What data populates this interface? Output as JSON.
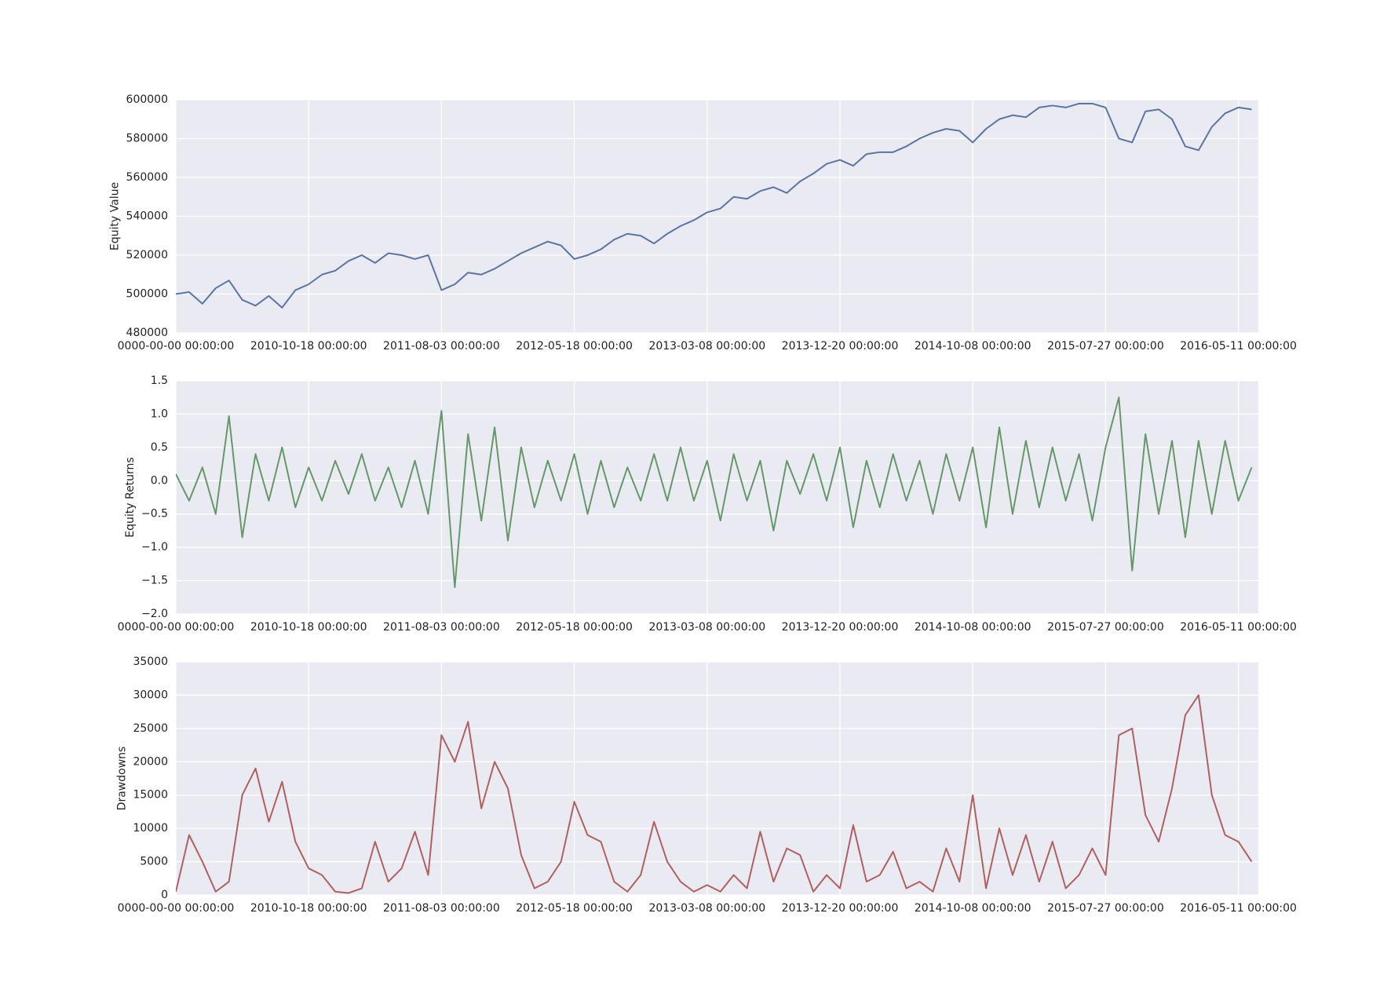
{
  "chart_data": [
    {
      "type": "line",
      "ylabel": "Equity Value",
      "x": [
        0,
        20,
        40,
        60,
        80,
        100,
        120,
        140,
        160,
        180,
        200,
        220,
        240,
        260,
        280,
        300,
        320,
        340,
        360,
        380,
        400,
        420,
        440,
        460,
        480,
        500,
        520,
        540,
        560,
        580,
        600,
        620,
        640,
        660,
        680,
        700,
        720,
        740,
        760,
        780,
        800,
        820,
        840,
        860,
        880,
        900,
        920,
        940,
        960,
        980,
        1000,
        1020,
        1040,
        1060,
        1080,
        1100,
        1120,
        1140,
        1160,
        1180,
        1200,
        1220,
        1240,
        1260,
        1280,
        1300,
        1320,
        1340,
        1360,
        1380,
        1400,
        1420,
        1440,
        1460,
        1480,
        1500,
        1520,
        1540,
        1560,
        1580,
        1600,
        1620
      ],
      "series": [
        {
          "name": "Equity Value",
          "color": "#5a75a3",
          "values": [
            500000,
            501000,
            495000,
            503000,
            507000,
            497000,
            494000,
            499000,
            493000,
            502000,
            505000,
            510000,
            512000,
            517000,
            520000,
            516000,
            521000,
            520000,
            518000,
            520000,
            502000,
            505000,
            511000,
            510000,
            513000,
            517000,
            521000,
            524000,
            527000,
            525000,
            518000,
            520000,
            523000,
            528000,
            531000,
            530000,
            526000,
            531000,
            535000,
            538000,
            542000,
            544000,
            550000,
            549000,
            553000,
            555000,
            552000,
            558000,
            562000,
            567000,
            569000,
            566000,
            572000,
            573000,
            573000,
            576000,
            580000,
            583000,
            585000,
            584000,
            578000,
            585000,
            590000,
            592000,
            591000,
            596000,
            597000,
            596000,
            598000,
            598000,
            596000,
            580000,
            578000,
            594000,
            595000,
            590000,
            576000,
            574000,
            586000,
            593000,
            596000,
            595000
          ]
        }
      ],
      "xlim": [
        0,
        1630
      ],
      "xticks": [
        {
          "value": 0,
          "label": "0000-00-00 00:00:00"
        },
        {
          "value": 200,
          "label": "2010-10-18 00:00:00"
        },
        {
          "value": 400,
          "label": "2011-08-03 00:00:00"
        },
        {
          "value": 600,
          "label": "2012-05-18 00:00:00"
        },
        {
          "value": 800,
          "label": "2013-03-08 00:00:00"
        },
        {
          "value": 1000,
          "label": "2013-12-20 00:00:00"
        },
        {
          "value": 1200,
          "label": "2014-10-08 00:00:00"
        },
        {
          "value": 1400,
          "label": "2015-07-27 00:00:00"
        },
        {
          "value": 1600,
          "label": "2016-05-11 00:00:00"
        }
      ],
      "ylim": [
        480000,
        600000
      ],
      "yticks": [
        480000,
        500000,
        520000,
        540000,
        560000,
        580000,
        600000
      ],
      "grid": true
    },
    {
      "type": "line",
      "ylabel": "Equity Returns",
      "x": [
        0,
        20,
        40,
        60,
        80,
        100,
        120,
        140,
        160,
        180,
        200,
        220,
        240,
        260,
        280,
        300,
        320,
        340,
        360,
        380,
        400,
        420,
        440,
        460,
        480,
        500,
        520,
        540,
        560,
        580,
        600,
        620,
        640,
        660,
        680,
        700,
        720,
        740,
        760,
        780,
        800,
        820,
        840,
        860,
        880,
        900,
        920,
        940,
        960,
        980,
        1000,
        1020,
        1040,
        1060,
        1080,
        1100,
        1120,
        1140,
        1160,
        1180,
        1200,
        1220,
        1240,
        1260,
        1280,
        1300,
        1320,
        1340,
        1360,
        1380,
        1400,
        1420,
        1440,
        1460,
        1480,
        1500,
        1520,
        1540,
        1560,
        1580,
        1600,
        1620
      ],
      "series": [
        {
          "name": "Equity Returns",
          "color": "#659869",
          "values": [
            0.1,
            -0.3,
            0.2,
            -0.5,
            0.97,
            -0.85,
            0.4,
            -0.3,
            0.5,
            -0.4,
            0.2,
            -0.3,
            0.3,
            -0.2,
            0.4,
            -0.3,
            0.2,
            -0.4,
            0.3,
            -0.5,
            1.05,
            -1.6,
            0.7,
            -0.6,
            0.8,
            -0.9,
            0.5,
            -0.4,
            0.3,
            -0.3,
            0.4,
            -0.5,
            0.3,
            -0.4,
            0.2,
            -0.3,
            0.4,
            -0.3,
            0.5,
            -0.3,
            0.3,
            -0.6,
            0.4,
            -0.3,
            0.3,
            -0.75,
            0.3,
            -0.2,
            0.4,
            -0.3,
            0.5,
            -0.7,
            0.3,
            -0.4,
            0.4,
            -0.3,
            0.3,
            -0.5,
            0.4,
            -0.3,
            0.5,
            -0.7,
            0.8,
            -0.5,
            0.6,
            -0.4,
            0.5,
            -0.3,
            0.4,
            -0.6,
            0.5,
            1.25,
            -1.35,
            0.7,
            -0.5,
            0.6,
            -0.85,
            0.6,
            -0.5,
            0.6,
            -0.3,
            0.2
          ]
        }
      ],
      "xlim": [
        0,
        1630
      ],
      "xticks": [
        {
          "value": 0,
          "label": "0000-00-00 00:00:00"
        },
        {
          "value": 200,
          "label": "2010-10-18 00:00:00"
        },
        {
          "value": 400,
          "label": "2011-08-03 00:00:00"
        },
        {
          "value": 600,
          "label": "2012-05-18 00:00:00"
        },
        {
          "value": 800,
          "label": "2013-03-08 00:00:00"
        },
        {
          "value": 1000,
          "label": "2013-12-20 00:00:00"
        },
        {
          "value": 1200,
          "label": "2014-10-08 00:00:00"
        },
        {
          "value": 1400,
          "label": "2015-07-27 00:00:00"
        },
        {
          "value": 1600,
          "label": "2016-05-11 00:00:00"
        }
      ],
      "ylim": [
        -2.0,
        1.5
      ],
      "yticks": [
        {
          "value": -2.0,
          "label": "−2.0"
        },
        {
          "value": -1.5,
          "label": "−1.5"
        },
        {
          "value": -1.0,
          "label": "−1.0"
        },
        {
          "value": -0.5,
          "label": "−0.5"
        },
        {
          "value": 0,
          "label": "0.0"
        },
        0.5,
        {
          "value": 1,
          "label": "1.0"
        },
        1.5
      ],
      "grid": true
    },
    {
      "type": "line",
      "ylabel": "Drawdowns",
      "x": [
        0,
        20,
        40,
        60,
        80,
        100,
        120,
        140,
        160,
        180,
        200,
        220,
        240,
        260,
        280,
        300,
        320,
        340,
        360,
        380,
        400,
        420,
        440,
        460,
        480,
        500,
        520,
        540,
        560,
        580,
        600,
        620,
        640,
        660,
        680,
        700,
        720,
        740,
        760,
        780,
        800,
        820,
        840,
        860,
        880,
        900,
        920,
        940,
        960,
        980,
        1000,
        1020,
        1040,
        1060,
        1080,
        1100,
        1120,
        1140,
        1160,
        1180,
        1200,
        1220,
        1240,
        1260,
        1280,
        1300,
        1320,
        1340,
        1360,
        1380,
        1400,
        1420,
        1440,
        1460,
        1480,
        1500,
        1520,
        1540,
        1560,
        1580,
        1600,
        1620
      ],
      "series": [
        {
          "name": "Drawdowns",
          "color": "#b0605f",
          "values": [
            500,
            9000,
            5000,
            500,
            2000,
            15000,
            19000,
            11000,
            17000,
            8000,
            4000,
            3000,
            500,
            300,
            1000,
            8000,
            2000,
            4000,
            9500,
            3000,
            24000,
            20000,
            26000,
            13000,
            20000,
            16000,
            6000,
            1000,
            2000,
            5000,
            14000,
            9000,
            8000,
            2000,
            500,
            3000,
            11000,
            5000,
            2000,
            500,
            1500,
            500,
            3000,
            1000,
            9500,
            2000,
            7000,
            6000,
            500,
            3000,
            1000,
            10500,
            2000,
            3000,
            6500,
            1000,
            2000,
            500,
            7000,
            2000,
            15000,
            1000,
            10000,
            3000,
            9000,
            2000,
            8000,
            1000,
            3000,
            7000,
            3000,
            24000,
            25000,
            12000,
            8000,
            16000,
            27000,
            30000,
            15000,
            9000,
            8000,
            5000
          ]
        }
      ],
      "xlim": [
        0,
        1630
      ],
      "xticks": [
        {
          "value": 0,
          "label": "0000-00-00 00:00:00"
        },
        {
          "value": 200,
          "label": "2010-10-18 00:00:00"
        },
        {
          "value": 400,
          "label": "2011-08-03 00:00:00"
        },
        {
          "value": 600,
          "label": "2012-05-18 00:00:00"
        },
        {
          "value": 800,
          "label": "2013-03-08 00:00:00"
        },
        {
          "value": 1000,
          "label": "2013-12-20 00:00:00"
        },
        {
          "value": 1200,
          "label": "2014-10-08 00:00:00"
        },
        {
          "value": 1400,
          "label": "2015-07-27 00:00:00"
        },
        {
          "value": 1600,
          "label": "2016-05-11 00:00:00"
        }
      ],
      "ylim": [
        0,
        35000
      ],
      "yticks": [
        0,
        5000,
        10000,
        15000,
        20000,
        25000,
        30000,
        35000
      ],
      "grid": true
    }
  ]
}
